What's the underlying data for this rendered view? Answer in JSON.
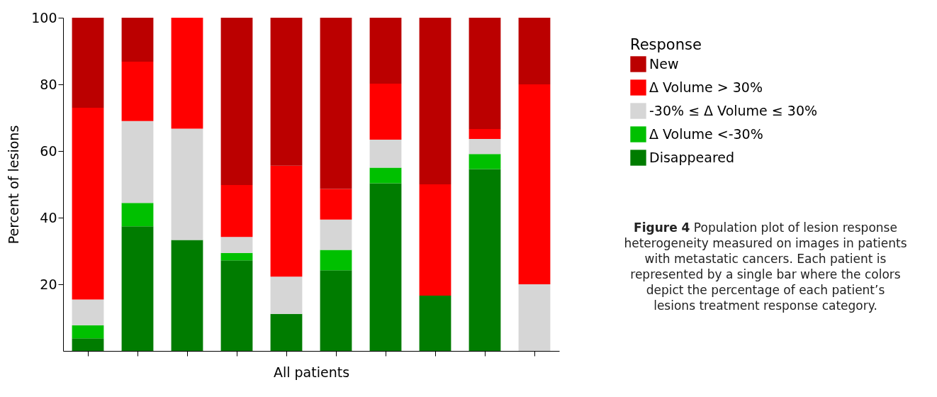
{
  "chart_data": {
    "type": "bar",
    "stacked": true,
    "xlabel": "All patients",
    "ylabel": "Percent of lesions",
    "legend_title": "Response",
    "legend": "right",
    "grid": false,
    "categories": [
      null,
      null,
      null,
      null,
      null,
      null,
      null,
      null,
      null,
      null
    ],
    "ylim": [
      0,
      100
    ],
    "yticks": [
      20,
      40,
      60,
      80,
      100
    ],
    "series": [
      {
        "name": "Disappeared",
        "color": "#007c00",
        "values": [
          3.8,
          37.4,
          33.3,
          27.2,
          11.1,
          24.2,
          50.3,
          16.6,
          54.6,
          0
        ]
      },
      {
        "name": "Δ Volume <-30%",
        "color": "#00c000",
        "values": [
          3.9,
          7.0,
          0,
          2.2,
          0,
          6.1,
          4.7,
          0,
          4.5,
          0
        ]
      },
      {
        "name": "-30% ≤ Δ Volume ≤ 30%",
        "color": "#d6d6d6",
        "values": [
          7.7,
          24.6,
          33.4,
          4.8,
          11.2,
          9.1,
          8.4,
          0,
          4.5,
          20
        ]
      },
      {
        "name": "Δ Volume > 30%",
        "color": "#ff0000",
        "values": [
          57.6,
          17.8,
          33.3,
          15.6,
          33.3,
          9.2,
          16.8,
          33.4,
          3.0,
          60
        ]
      },
      {
        "name": "New",
        "color": "#bb0000",
        "values": [
          27.0,
          13.2,
          0,
          50.2,
          44.4,
          51.4,
          19.8,
          50,
          33.4,
          20
        ]
      }
    ],
    "annotations": [
      "Figure 4 Population plot of lesion response heterogeneity measured on images in patients with metastatic cancers. Each patient is represented by a single bar where the colors depict the percentage of each patient’s lesions treatment response category."
    ]
  }
}
